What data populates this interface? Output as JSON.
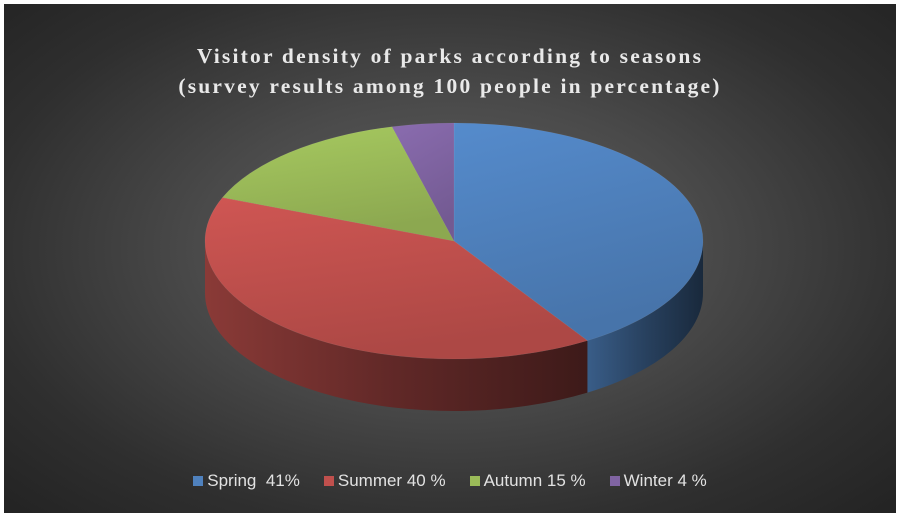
{
  "chart_data": {
    "type": "pie",
    "title_lines": [
      "Visitor density of parks according to seasons",
      "(survey results among 100 people in percentage)"
    ],
    "categories": [
      "Spring",
      "Summer",
      "Autumn",
      "Winter"
    ],
    "values": [
      41,
      40,
      15,
      4
    ],
    "colors": [
      "#4f81bd",
      "#c0504d",
      "#9bbb59",
      "#8064a2"
    ],
    "legend_position": "bottom",
    "legend_labels": [
      "Spring  41%",
      "Summer 40 %",
      "Autumn 15 %",
      "Winter 4 %"
    ],
    "style": "3d"
  }
}
